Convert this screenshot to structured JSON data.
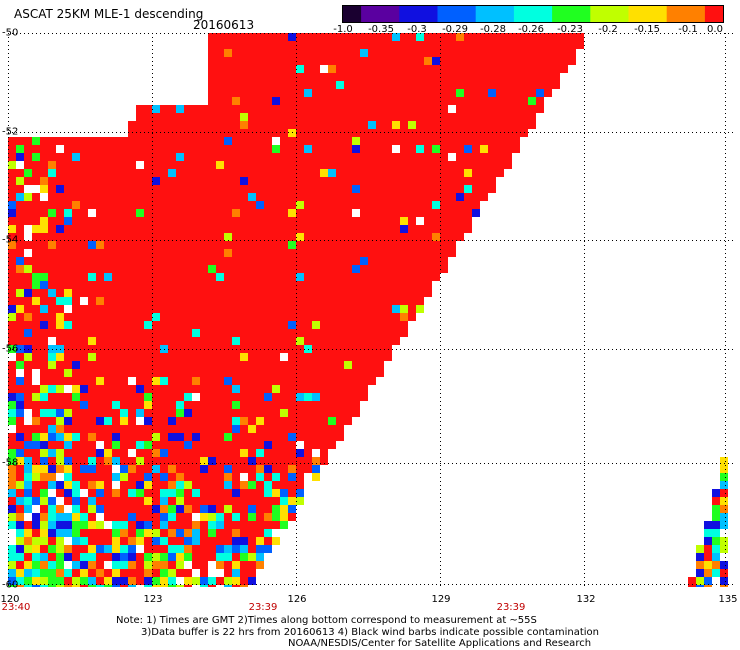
{
  "title": "ASCAT 25KM MLE-1 descending",
  "date": "20160613",
  "colorbar": {
    "labels": [
      "-1.0",
      "-0.35",
      "-0.3",
      "-0.29",
      "-0.28",
      "-0.26",
      "-0.23",
      "-0.2",
      "-0.15",
      "-0.1",
      "0.0"
    ],
    "stops": [
      "#1a0030",
      "#5a00a0",
      "#1010e0",
      "#0060ff",
      "#00c0ff",
      "#00ffe0",
      "#20ff20",
      "#c0ff00",
      "#ffe000",
      "#ff8000",
      "#ff1010"
    ]
  },
  "axes": {
    "lat_labels": [
      "-50",
      "-52",
      "-54",
      "-56",
      "-58",
      "-60"
    ],
    "lon_labels": [
      "120",
      "123",
      "126",
      "129",
      "132",
      "135"
    ],
    "time_labels": [
      "23:40",
      "23:39",
      "23:39"
    ]
  },
  "notes": {
    "line1": "Note: 1) Times are GMT 2)Times along bottom correspond to measurement at ~55S",
    "line2": "3)Data buffer is 22 hrs from 20160613 4) Black wind barbs indicate possible contamination",
    "line3": "NOAA/NESDIS/Center for Satellite Applications and Research"
  },
  "colors": {
    "primary": "#ff1010",
    "time_label": "#c00000"
  }
}
